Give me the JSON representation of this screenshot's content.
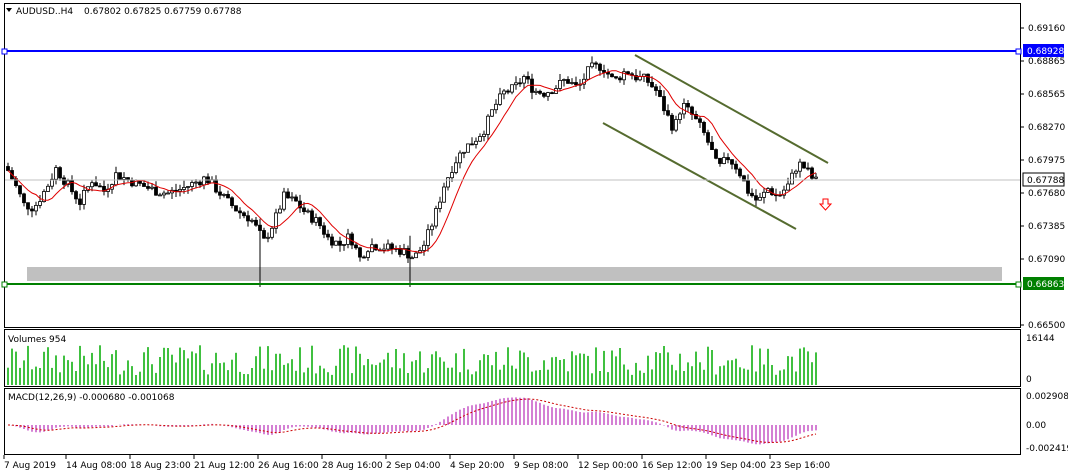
{
  "header": {
    "symbol_tf": "AUDUSD..H4",
    "ohlc": "0.67802 0.67825 0.67759 0.67788"
  },
  "colors": {
    "resistance_line": "#0000ff",
    "support_line": "#008000",
    "channel_line": "#556b2f",
    "moving_average": "#e00000",
    "volume_bar": "#00aa00",
    "macd_histogram": "#aa00aa",
    "macd_signal": "#cc0000",
    "zone": "#c0c0c0",
    "arrow": "#ff0000"
  },
  "icons": {
    "menu": "triangle-down-icon",
    "signal": "down-arrow-icon"
  },
  "price_axis": [
    "0.69160",
    "0.68865",
    "0.68565",
    "0.68270",
    "0.67975",
    "0.67680",
    "0.67385",
    "0.67090",
    "0.66500"
  ],
  "price_badges": {
    "resistance": "0.68928",
    "current": "0.67788",
    "support": "0.66863"
  },
  "volume_panel": {
    "title": "Volumes 954",
    "axis": [
      "16144",
      "0"
    ]
  },
  "macd_panel": {
    "title": "MACD(12,26,9) -0.000680 -0.001068",
    "axis": [
      "0.002908",
      "0.00",
      "-0.002419"
    ]
  },
  "time_axis": [
    "7 Aug 2019",
    "14 Aug 08:00",
    "18 Aug 23:00",
    "21 Aug 12:00",
    "26 Aug 16:00",
    "28 Aug 16:00",
    "2 Sep 04:00",
    "4 Sep 20:00",
    "9 Sep 08:00",
    "12 Sep 00:00",
    "16 Sep 12:00",
    "19 Sep 04:00",
    "23 Sep 16:00"
  ],
  "chart_data": {
    "type": "candlestick",
    "symbol": "AUDUSD..",
    "timeframe": "H4",
    "ylim": [
      0.665,
      0.6925
    ],
    "levels": {
      "resistance": 0.68928,
      "support": 0.66863,
      "current": 0.67788
    },
    "close_path": [
      [
        0,
        0.6792
      ],
      [
        8,
        0.6778
      ],
      [
        18,
        0.6758
      ],
      [
        28,
        0.6755
      ],
      [
        40,
        0.6772
      ],
      [
        50,
        0.679
      ],
      [
        62,
        0.6775
      ],
      [
        74,
        0.676
      ],
      [
        86,
        0.678
      ],
      [
        98,
        0.677
      ],
      [
        110,
        0.6785
      ],
      [
        122,
        0.678
      ],
      [
        136,
        0.6775
      ],
      [
        150,
        0.677
      ],
      [
        162,
        0.6768
      ],
      [
        176,
        0.6772
      ],
      [
        190,
        0.6778
      ],
      [
        200,
        0.6782
      ],
      [
        210,
        0.6772
      ],
      [
        220,
        0.6762
      ],
      [
        232,
        0.6752
      ],
      [
        245,
        0.6745
      ],
      [
        258,
        0.6725
      ],
      [
        268,
        0.6742
      ],
      [
        278,
        0.6765
      ],
      [
        290,
        0.676
      ],
      [
        300,
        0.675
      ],
      [
        312,
        0.6742
      ],
      [
        322,
        0.6728
      ],
      [
        334,
        0.6722
      ],
      [
        344,
        0.673
      ],
      [
        354,
        0.671
      ],
      [
        364,
        0.6722
      ],
      [
        376,
        0.672
      ],
      [
        388,
        0.6718
      ],
      [
        398,
        0.6716
      ],
      [
        408,
        0.671
      ],
      [
        418,
        0.6722
      ],
      [
        428,
        0.6745
      ],
      [
        438,
        0.6775
      ],
      [
        448,
        0.6795
      ],
      [
        458,
        0.6808
      ],
      [
        468,
        0.6815
      ],
      [
        478,
        0.6825
      ],
      [
        488,
        0.6845
      ],
      [
        498,
        0.6858
      ],
      [
        508,
        0.6862
      ],
      [
        518,
        0.6872
      ],
      [
        528,
        0.686
      ],
      [
        538,
        0.6858
      ],
      [
        548,
        0.6862
      ],
      [
        560,
        0.687
      ],
      [
        572,
        0.6862
      ],
      [
        584,
        0.688
      ],
      [
        596,
        0.6882
      ],
      [
        608,
        0.6868
      ],
      [
        620,
        0.6878
      ],
      [
        630,
        0.6872
      ],
      [
        640,
        0.687
      ],
      [
        650,
        0.686
      ],
      [
        660,
        0.684
      ],
      [
        668,
        0.6825
      ],
      [
        676,
        0.6848
      ],
      [
        686,
        0.6838
      ],
      [
        696,
        0.6825
      ],
      [
        704,
        0.681
      ],
      [
        712,
        0.679
      ],
      [
        722,
        0.68
      ],
      [
        732,
        0.679
      ],
      [
        742,
        0.677
      ],
      [
        752,
        0.676
      ],
      [
        762,
        0.6772
      ],
      [
        772,
        0.6765
      ],
      [
        782,
        0.6775
      ],
      [
        792,
        0.6795
      ],
      [
        800,
        0.679
      ],
      [
        808,
        0.6779
      ]
    ]
  }
}
